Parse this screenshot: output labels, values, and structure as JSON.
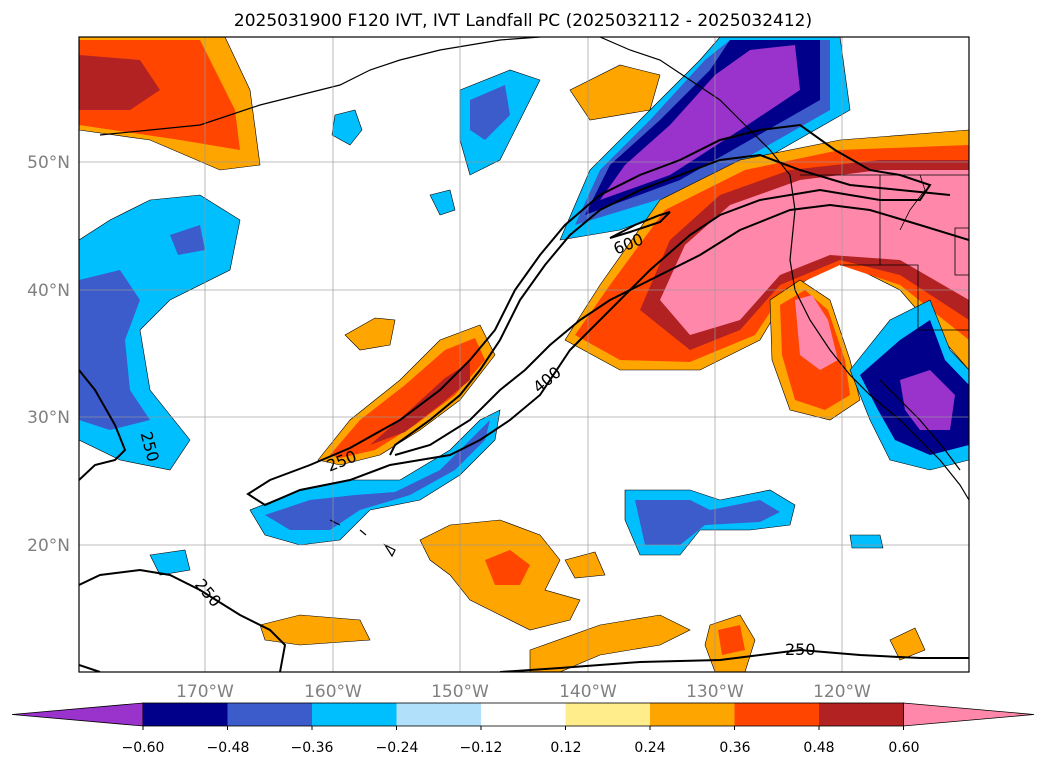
{
  "title": "2025031900 F120 IVT, IVT Landfall PC (2025032112 - 2025032412)",
  "map": {
    "lat_labels": [
      "50°N",
      "40°N",
      "30°N",
      "20°N"
    ],
    "lon_labels": [
      "170°W",
      "160°W",
      "150°W",
      "140°W",
      "130°W",
      "120°W"
    ],
    "contour_labels": [
      "600",
      "400",
      "250",
      "250",
      "250",
      "250"
    ]
  },
  "colorbar": {
    "tick_labels": [
      "−0.60",
      "−0.48",
      "−0.36",
      "−0.24",
      "−0.12",
      "0.12",
      "0.24",
      "0.36",
      "0.48",
      "0.60"
    ],
    "colors": [
      "#9933cc",
      "#00008b",
      "#3d5ccc",
      "#00bfff",
      "#b0e0fa",
      "#ffffff",
      "#ffec8b",
      "#ffa500",
      "#ff4500",
      "#b22222",
      "#ff88aa"
    ]
  }
}
